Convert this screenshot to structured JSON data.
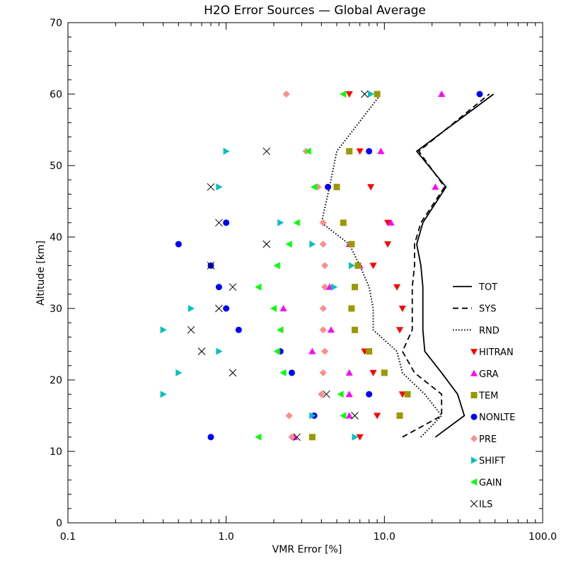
{
  "chart_data": {
    "type": "scatter",
    "title": "H2O Error Sources — Global Average",
    "xlabel": "VMR Error [%]",
    "ylabel": "Altitude [km]",
    "x_scale": "log",
    "xlim": [
      0.1,
      100
    ],
    "ylim": [
      0,
      70
    ],
    "x_tick_labels": [
      "0.1",
      "1.0",
      "10.0",
      "100.0"
    ],
    "x_tick_values": [
      0.1,
      1,
      10,
      100
    ],
    "y_tick_values": [
      0,
      10,
      20,
      30,
      40,
      50,
      60,
      70
    ],
    "y_tick_labels": [
      "0",
      "10",
      "20",
      "30",
      "40",
      "50",
      "60",
      "70"
    ],
    "legend_position": "lower-right",
    "line_series": [
      {
        "name": "TOT",
        "style": "solid",
        "altitudes": [
          12,
          15,
          18,
          21,
          24,
          27,
          30,
          33,
          36,
          39,
          42,
          47,
          52,
          60
        ],
        "values": [
          21,
          32,
          29,
          23,
          18,
          17.5,
          17.5,
          17.5,
          17,
          16,
          17.5,
          24.5,
          16,
          49
        ]
      },
      {
        "name": "SYS",
        "style": "dashed",
        "altitudes": [
          12,
          15,
          18,
          21,
          24,
          27,
          30,
          33,
          36,
          39,
          42,
          47,
          52,
          60
        ],
        "values": [
          13,
          23,
          23,
          15.5,
          13,
          15,
          15,
          15,
          15.5,
          15.5,
          17,
          24,
          16.5,
          46
        ]
      },
      {
        "name": "RND",
        "style": "dotted",
        "altitudes": [
          12,
          15,
          18,
          21,
          24,
          27,
          30,
          33,
          36,
          39,
          42,
          47,
          52,
          60
        ],
        "values": [
          17,
          23,
          18,
          13,
          12,
          8.5,
          8.5,
          8,
          7,
          6,
          4,
          4.5,
          5,
          9.5
        ]
      }
    ],
    "marker_series": [
      {
        "name": "HITRAN",
        "marker": "triangle-down",
        "color": "#ff0000",
        "points": [
          [
            6,
            60
          ],
          [
            7,
            52
          ],
          [
            8.2,
            47
          ],
          [
            10.5,
            42
          ],
          [
            10.5,
            39
          ],
          [
            8.5,
            36
          ],
          [
            12,
            33
          ],
          [
            13,
            30
          ],
          [
            12.5,
            27
          ],
          [
            7.5,
            24
          ],
          [
            8.5,
            21
          ],
          [
            13,
            18
          ],
          [
            9,
            15
          ],
          [
            7,
            12
          ]
        ]
      },
      {
        "name": "GRA",
        "marker": "triangle-up",
        "color": "#ff00ff",
        "points": [
          [
            23,
            60
          ],
          [
            9.5,
            52
          ],
          [
            21,
            47
          ],
          [
            11,
            42
          ],
          [
            6,
            39
          ],
          [
            7,
            36
          ],
          [
            4.5,
            33
          ],
          [
            2.3,
            30
          ],
          [
            4.6,
            27
          ],
          [
            3.5,
            24
          ],
          [
            6,
            21
          ],
          [
            6,
            18
          ],
          [
            6,
            15
          ],
          [
            2.7,
            12
          ]
        ]
      },
      {
        "name": "TEM",
        "marker": "square",
        "color": "#999900",
        "points": [
          [
            9,
            60
          ],
          [
            6,
            52
          ],
          [
            5,
            47
          ],
          [
            5.5,
            42
          ],
          [
            6.2,
            39
          ],
          [
            6.8,
            36
          ],
          [
            6.5,
            33
          ],
          [
            6.2,
            30
          ],
          [
            6.5,
            27
          ],
          [
            8,
            24
          ],
          [
            10,
            21
          ],
          [
            14,
            18
          ],
          [
            12.5,
            15
          ],
          [
            3.5,
            12
          ]
        ]
      },
      {
        "name": "NONLTE",
        "marker": "circle",
        "color": "#0000ff",
        "points": [
          [
            40,
            60
          ],
          [
            8,
            52
          ],
          [
            4.4,
            47
          ],
          [
            1,
            42
          ],
          [
            0.5,
            39
          ],
          [
            0.8,
            36
          ],
          [
            0.9,
            33
          ],
          [
            1,
            30
          ],
          [
            1.2,
            27
          ],
          [
            2.2,
            24
          ],
          [
            2.6,
            21
          ],
          [
            8,
            18
          ],
          [
            3.6,
            15
          ],
          [
            0.8,
            12
          ]
        ]
      },
      {
        "name": "PRE",
        "marker": "diamond",
        "color": "#ff8c8c",
        "points": [
          [
            2.4,
            60
          ],
          [
            3.2,
            52
          ],
          [
            3.8,
            47
          ],
          [
            4.1,
            42
          ],
          [
            4.1,
            39
          ],
          [
            4.2,
            36
          ],
          [
            4.2,
            33
          ],
          [
            4.1,
            30
          ],
          [
            4.1,
            27
          ],
          [
            4.2,
            24
          ],
          [
            4.1,
            21
          ],
          [
            4,
            18
          ],
          [
            2.5,
            15
          ],
          [
            2.6,
            12
          ]
        ]
      },
      {
        "name": "SHIFT",
        "marker": "triangle-right",
        "color": "#00c0c0",
        "points": [
          [
            8.2,
            60
          ],
          [
            1,
            52
          ],
          [
            0.9,
            47
          ],
          [
            2.2,
            42
          ],
          [
            3.5,
            39
          ],
          [
            6.2,
            36
          ],
          [
            4.8,
            33
          ],
          [
            0.6,
            30
          ],
          [
            0.4,
            27
          ],
          [
            0.9,
            24
          ],
          [
            0.5,
            21
          ],
          [
            0.4,
            18
          ],
          [
            3.5,
            15
          ],
          [
            6.5,
            12
          ]
        ]
      },
      {
        "name": "GAIN",
        "marker": "triangle-left",
        "color": "#00ff00",
        "points": [
          [
            5.5,
            60
          ],
          [
            3.3,
            52
          ],
          [
            3.6,
            47
          ],
          [
            2.8,
            42
          ],
          [
            2.5,
            39
          ],
          [
            2.1,
            36
          ],
          [
            1.6,
            33
          ],
          [
            2,
            30
          ],
          [
            2.2,
            27
          ],
          [
            2.1,
            24
          ],
          [
            2.3,
            21
          ],
          [
            5.3,
            18
          ],
          [
            5.5,
            15
          ],
          [
            1.6,
            12
          ]
        ]
      },
      {
        "name": "ILS",
        "marker": "x",
        "color": "#000000",
        "points": [
          [
            7.5,
            60
          ],
          [
            1.8,
            52
          ],
          [
            0.8,
            47
          ],
          [
            0.9,
            42
          ],
          [
            1.8,
            39
          ],
          [
            0.8,
            36
          ],
          [
            1.1,
            33
          ],
          [
            0.9,
            30
          ],
          [
            0.6,
            27
          ],
          [
            0.7,
            24
          ],
          [
            1.1,
            21
          ],
          [
            4.3,
            18
          ],
          [
            6.5,
            15
          ],
          [
            2.8,
            12
          ]
        ]
      }
    ]
  }
}
